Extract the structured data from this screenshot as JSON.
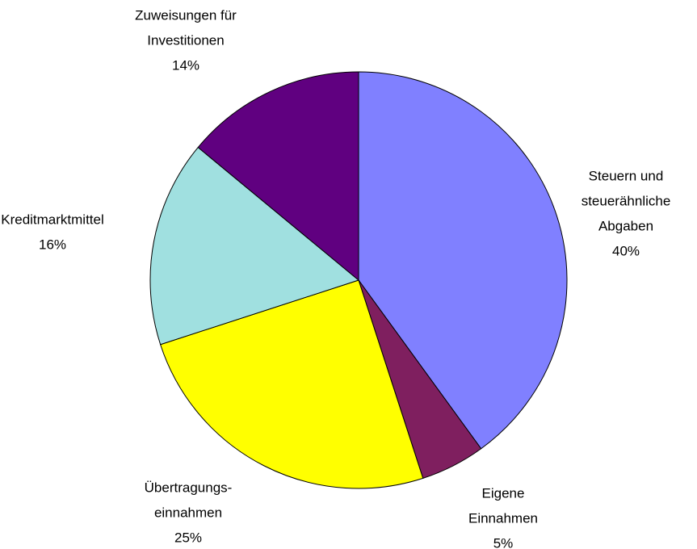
{
  "chart_data": {
    "type": "pie",
    "categories": [
      [
        "Steuern und",
        "steuerähnliche",
        "Abgaben"
      ],
      [
        "Eigene",
        "Einnahmen"
      ],
      [
        "Übertragungs-",
        "einnahmen"
      ],
      [
        "Kreditmarktmittel"
      ],
      [
        "Zuweisungen für",
        "Investitionen"
      ]
    ],
    "values": [
      40,
      5,
      25,
      16,
      14
    ],
    "value_labels": [
      "40%",
      "5%",
      "25%",
      "16%",
      "14%"
    ],
    "colors": [
      "#8080ff",
      "#7f1f5f",
      "#ffff00",
      "#a0e0e0",
      "#600080"
    ]
  }
}
